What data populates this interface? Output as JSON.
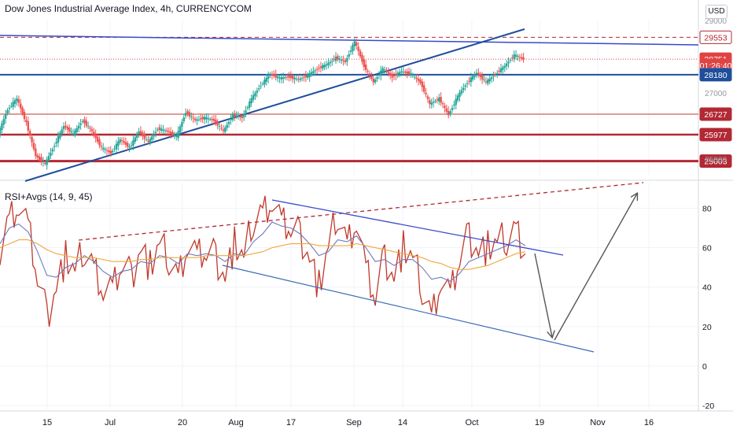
{
  "header": {
    "title": "Dow Jones Industrial Average Index, 4h, CURRENCYCOM",
    "currency_button": "USD"
  },
  "rsi_panel": {
    "title": "RSI+Avgs (14, 9, 45)"
  },
  "price_labels": [
    {
      "text": "29553",
      "value": 29553,
      "bg": "#ffffff",
      "fg": "#b22833",
      "border": "#b22833"
    },
    {
      "text": "28751",
      "value": 28751,
      "bg": "#e04343",
      "fg": "#ffffff",
      "border": "#e04343"
    },
    {
      "text": "01:26:40",
      "value": 28520,
      "bg": "#e04343",
      "fg": "#ffffff",
      "border": "#e04343"
    },
    {
      "text": "28180",
      "value": 28180,
      "bg": "#1f4e9c",
      "fg": "#ffffff",
      "border": "#1f4e9c"
    },
    {
      "text": "26727",
      "value": 26727,
      "bg": "#b22833",
      "fg": "#ffffff",
      "border": "#b22833"
    },
    {
      "text": "25977",
      "value": 25977,
      "bg": "#b22833",
      "fg": "#ffffff",
      "border": "#b22833"
    },
    {
      "text": "25003",
      "value": 25003,
      "bg": "#b22833",
      "fg": "#ffffff",
      "border": "#b22833"
    }
  ],
  "chart_data": [
    {
      "type": "line",
      "title": "Dow Jones Industrial Average Index, 4h, CURRENCYCOM",
      "x_ticks": [
        "15",
        "Jul",
        "20",
        "Aug",
        "17",
        "Sep",
        "14",
        "Oct",
        "19",
        "Nov",
        "16"
      ],
      "y_axis_labels": [
        "30000",
        "29000",
        "27000",
        "25000"
      ],
      "ylim": [
        24500,
        30200
      ],
      "series": [
        {
          "values": [
            26000,
            26900,
            27300,
            26400,
            25200,
            24900,
            25600,
            26300,
            26000,
            26500,
            26100,
            25500,
            25300,
            25800,
            25500,
            26100,
            25700,
            26200,
            26100,
            25900,
            26800,
            26500,
            26600,
            26500,
            26100,
            26700,
            26600,
            27300,
            27800,
            28200,
            28050,
            28100,
            28000,
            28150,
            28400,
            28550,
            28800,
            28650,
            29400,
            28500,
            27900,
            28400,
            28100,
            28300,
            28200,
            27900,
            27100,
            27300,
            26700,
            27400,
            27900,
            28250,
            27900,
            28200,
            28500,
            28900,
            28750
          ]
        }
      ],
      "horizontal_levels": [
        29553,
        28751,
        28180,
        26727,
        25977,
        25003
      ],
      "trendlines": [
        {
          "from": {
            "x": "early Jun",
            "y": 29650
          },
          "to": {
            "x": "late Oct",
            "y": 29420
          }
        },
        {
          "from": {
            "x": "early Jun",
            "y": 24700
          },
          "to": {
            "x": "mid Oct",
            "y": 29700
          }
        }
      ],
      "grid": true
    },
    {
      "type": "line",
      "title": "RSI+Avgs (14, 9, 45)",
      "y_ticks": [
        80,
        60,
        40,
        20,
        0,
        -20
      ],
      "ylim": [
        -22,
        93
      ],
      "series": [
        {
          "values": [
            60,
            75,
            83,
            70,
            45,
            25,
            40,
            55,
            48,
            60,
            50,
            40,
            38,
            52,
            45,
            60,
            50,
            62,
            55,
            45,
            63,
            55,
            58,
            55,
            45,
            62,
            55,
            75,
            78,
            85,
            72,
            70,
            66,
            55,
            40,
            60,
            78,
            62,
            75,
            48,
            35,
            55,
            45,
            60,
            55,
            40,
            25,
            45,
            35,
            55,
            66,
            58,
            60,
            63,
            65,
            70,
            57
          ],
          "color": "#c0392b"
        },
        {
          "values": [
            62,
            70,
            72,
            68,
            58,
            46,
            45,
            50,
            52,
            56,
            53,
            48,
            45,
            48,
            49,
            53,
            52,
            56,
            55,
            52,
            57,
            56,
            57,
            56,
            53,
            57,
            56,
            63,
            67,
            73,
            71,
            70,
            67,
            62,
            56,
            58,
            64,
            63,
            66,
            60,
            53,
            54,
            51,
            54,
            54,
            50,
            44,
            45,
            43,
            47,
            53,
            55,
            57,
            59,
            61,
            64,
            61
          ],
          "color": "#6b7bbf"
        },
        {
          "values": [
            60,
            62,
            64,
            64,
            62,
            59,
            57,
            56,
            55,
            55,
            55,
            54,
            53,
            53,
            53,
            54,
            54,
            55,
            55,
            55,
            55,
            55,
            56,
            56,
            56,
            56,
            56,
            57,
            58,
            60,
            61,
            62,
            62,
            62,
            61,
            61,
            61,
            61,
            62,
            61,
            60,
            59,
            58,
            57,
            56,
            55,
            53,
            52,
            50,
            49,
            49,
            50,
            51,
            53,
            55,
            57,
            58
          ],
          "color": "#f2a73b"
        }
      ],
      "annotations": [
        {
          "type": "trendline",
          "style": "dashed",
          "from": {
            "x": "late Jun",
            "y": 63
          },
          "to": {
            "x": "mid Nov",
            "y": 93
          }
        },
        {
          "type": "trendline",
          "from": {
            "x": "Aug",
            "y": 85
          },
          "to": {
            "x": "mid Oct",
            "y": 56
          }
        },
        {
          "type": "trendline",
          "from": {
            "x": "late Jul",
            "y": 50
          },
          "to": {
            "x": "late Oct",
            "y": 7
          }
        },
        {
          "type": "arrow",
          "from": {
            "x": "mid Oct",
            "y": 56
          },
          "to": {
            "x": "late Oct",
            "y": 12
          }
        },
        {
          "type": "arrow",
          "from": {
            "x": "late Oct",
            "y": 12
          },
          "to": {
            "x": "mid Nov",
            "y": 88
          }
        }
      ],
      "grid": true
    }
  ]
}
